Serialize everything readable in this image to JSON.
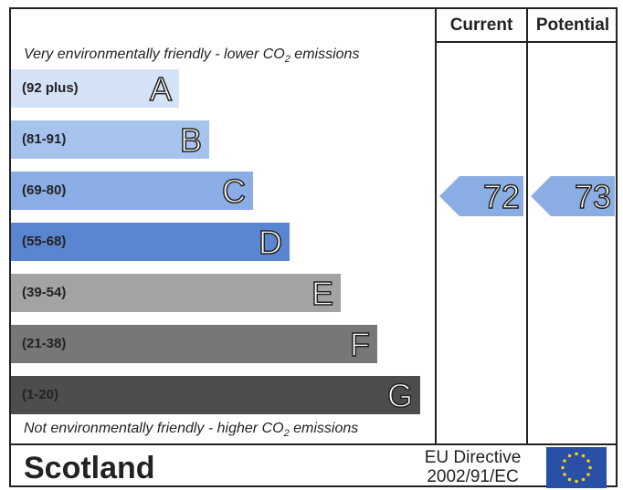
{
  "header": {
    "current": "Current",
    "potential": "Potential"
  },
  "top_note": {
    "before": "Very environmentally friendly - lower CO",
    "sub": "2",
    "after": " emissions"
  },
  "bottom_note": {
    "before": "Not environmentally friendly - higher CO",
    "sub": "2",
    "after": " emissions"
  },
  "bands": [
    {
      "range": "(92 plus)",
      "letter": "A",
      "color": "#d3e2f6"
    },
    {
      "range": "(81-91)",
      "letter": "B",
      "color": "#a6c3ee"
    },
    {
      "range": "(69-80)",
      "letter": "C",
      "color": "#8bade6"
    },
    {
      "range": "(55-68)",
      "letter": "D",
      "color": "#5a86d1"
    },
    {
      "range": "(39-54)",
      "letter": "E",
      "color": "#a3a3a3"
    },
    {
      "range": "(21-38)",
      "letter": "F",
      "color": "#777777"
    },
    {
      "range": "(1-20)",
      "letter": "G",
      "color": "#4d4d4d"
    }
  ],
  "current": {
    "value": "72",
    "color": "#8aaee4"
  },
  "potential": {
    "value": "73",
    "color": "#8aaee4"
  },
  "footer": {
    "country": "Scotland",
    "directive_line1": "EU Directive",
    "directive_line2": "2002/91/EC"
  }
}
